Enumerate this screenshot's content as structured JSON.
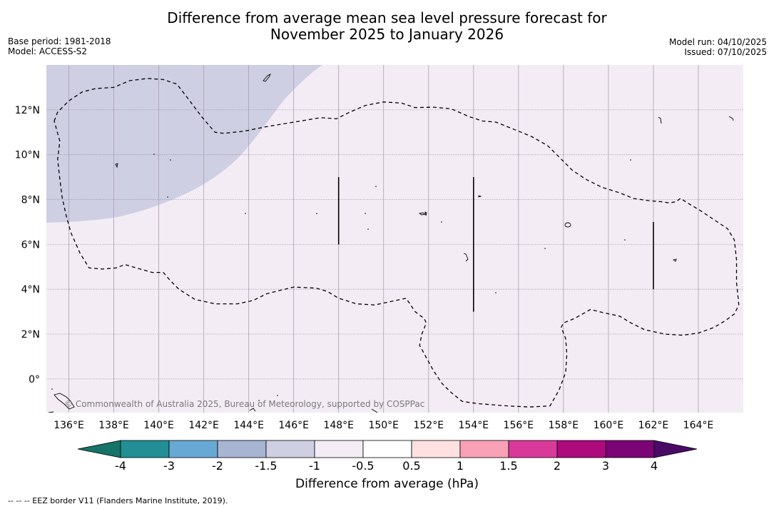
{
  "header": {
    "title_line1": "Difference from average mean sea level pressure forecast for",
    "title_line2": "November 2025 to January 2026",
    "base_period": "Base period: 1981-2018",
    "model": "Model: ACCESS-S2",
    "model_run": "Model run: 04/10/2025",
    "issued": "Issued: 07/10/2025"
  },
  "map": {
    "lon_range": [
      135,
      166
    ],
    "lat_range": [
      -1.5,
      14
    ],
    "lon_ticks": [
      136,
      138,
      140,
      142,
      144,
      146,
      148,
      150,
      152,
      154,
      156,
      158,
      160,
      162,
      164
    ],
    "lon_labels": [
      "136°E",
      "138°E",
      "140°E",
      "142°E",
      "144°E",
      "146°E",
      "148°E",
      "150°E",
      "152°E",
      "154°E",
      "156°E",
      "158°E",
      "160°E",
      "162°E",
      "164°E"
    ],
    "lat_ticks": [
      12,
      10,
      8,
      6,
      4,
      2,
      0
    ],
    "lat_labels": [
      "12°N",
      "10°N",
      "8°N",
      "6°N",
      "4°N",
      "2°N",
      "0°"
    ],
    "attribution": "© Commonwealth of Australia 2025, Bureau of Meteorology, supported by COSPPac",
    "background_color": "#f4ecf5",
    "anomaly_region_color": "#cfcfe3",
    "anomaly_region_range": "-1.5 to -1 hPa",
    "background_range": "-1 to -0.5 hPa",
    "eez_boundary": [
      [
        135.35,
        11.5
      ],
      [
        135.5,
        11.9
      ],
      [
        136,
        12.4
      ],
      [
        136.6,
        12.8
      ],
      [
        137.2,
        12.95
      ],
      [
        138,
        13
      ],
      [
        138.7,
        13.3
      ],
      [
        139.5,
        13.4
      ],
      [
        140.2,
        13.35
      ],
      [
        140.8,
        13.15
      ],
      [
        141.3,
        12.5
      ],
      [
        141.9,
        11.7
      ],
      [
        142.5,
        11
      ],
      [
        142.9,
        10.95
      ],
      [
        143.8,
        11.05
      ],
      [
        144.8,
        11.25
      ],
      [
        146,
        11.45
      ],
      [
        147.2,
        11.65
      ],
      [
        147.9,
        11.6
      ],
      [
        148.5,
        11.9
      ],
      [
        149.2,
        12.2
      ],
      [
        150,
        12.35
      ],
      [
        150.8,
        12.3
      ],
      [
        151.4,
        12.1
      ],
      [
        152.2,
        12.12
      ],
      [
        153,
        12.05
      ],
      [
        153.8,
        11.7
      ],
      [
        154.4,
        11.5
      ],
      [
        155,
        11.45
      ],
      [
        156,
        11.05
      ],
      [
        156.6,
        10.8
      ],
      [
        157.3,
        10.4
      ],
      [
        157.8,
        9.9
      ],
      [
        158.4,
        9.3
      ],
      [
        159,
        8.9
      ],
      [
        159.7,
        8.55
      ],
      [
        160.5,
        8.3
      ],
      [
        161.1,
        8.05
      ],
      [
        161.8,
        7.95
      ],
      [
        162.4,
        7.9
      ],
      [
        162.7,
        7.85
      ],
      [
        163,
        7.9
      ],
      [
        163.2,
        8.05
      ],
      [
        163.6,
        7.8
      ],
      [
        164.1,
        7.5
      ],
      [
        164.7,
        7.1
      ],
      [
        165.3,
        6.7
      ],
      [
        165.6,
        6.2
      ],
      [
        165.7,
        5.3
      ],
      [
        165.7,
        4.3
      ],
      [
        165.8,
        3.3
      ],
      [
        165.6,
        2.9
      ],
      [
        165.2,
        2.6
      ],
      [
        164.7,
        2.3
      ],
      [
        164,
        2.05
      ],
      [
        163.3,
        1.95
      ],
      [
        162.5,
        2
      ],
      [
        161.6,
        2.2
      ],
      [
        161,
        2.5
      ],
      [
        160.5,
        2.8
      ],
      [
        159.8,
        2.95
      ],
      [
        159.2,
        3.1
      ],
      [
        158.5,
        2.7
      ],
      [
        158,
        2.5
      ],
      [
        157.9,
        2.3
      ],
      [
        158.1,
        1.8
      ],
      [
        158.15,
        1.1
      ],
      [
        158.1,
        0.3
      ],
      [
        157.8,
        -0.5
      ],
      [
        157.4,
        -1.2
      ],
      [
        156.5,
        -1.25
      ],
      [
        155.5,
        -1.2
      ],
      [
        154.2,
        -1.1
      ],
      [
        153.5,
        -1
      ],
      [
        153,
        -0.6
      ],
      [
        152.6,
        -0.2
      ],
      [
        152.2,
        0.4
      ],
      [
        151.6,
        1.5
      ],
      [
        151.7,
        2
      ],
      [
        151.9,
        2.5
      ],
      [
        151.8,
        2.7
      ],
      [
        151.4,
        3
      ],
      [
        151,
        3.6
      ],
      [
        150.3,
        3.45
      ],
      [
        149.6,
        3.3
      ],
      [
        148.8,
        3.35
      ],
      [
        148,
        3.6
      ],
      [
        147.5,
        3.9
      ],
      [
        147,
        4.05
      ],
      [
        146,
        4.1
      ],
      [
        145.2,
        3.9
      ],
      [
        144.8,
        3.8
      ],
      [
        144.2,
        3.5
      ],
      [
        143.5,
        3.35
      ],
      [
        142.5,
        3.35
      ],
      [
        141.6,
        3.55
      ],
      [
        140.9,
        4
      ],
      [
        140.5,
        4.4
      ],
      [
        140.2,
        4.75
      ],
      [
        139.7,
        4.75
      ],
      [
        139,
        4.95
      ],
      [
        138.5,
        5.1
      ],
      [
        138.1,
        4.95
      ],
      [
        137.5,
        4.9
      ],
      [
        136.9,
        4.95
      ],
      [
        136.5,
        5.6
      ],
      [
        136.1,
        6.5
      ],
      [
        135.9,
        7.2
      ],
      [
        135.7,
        8.1
      ],
      [
        135.6,
        8.9
      ],
      [
        135.5,
        9.8
      ],
      [
        135.6,
        10.6
      ],
      [
        135.35,
        11.5
      ]
    ],
    "eez_segments": [
      [
        [
          148,
          9
        ],
        [
          148,
          6
        ]
      ],
      [
        [
          154,
          9
        ],
        [
          154,
          3
        ]
      ],
      [
        [
          162,
          7
        ],
        [
          162,
          4
        ]
      ]
    ]
  },
  "colorbar": {
    "tick_labels": [
      "-4",
      "-3",
      "-2",
      "-1.5",
      "-1",
      "-0.5",
      "0.5",
      "1",
      "1.5",
      "2",
      "3",
      "4"
    ],
    "low_extend_color": "#137467",
    "high_extend_color": "#4a0a66",
    "bin_colors": [
      "#218f94",
      "#68a8d4",
      "#a7b4d2",
      "#cfcfe3",
      "#f4ecf5",
      "#ffffff",
      "#fde0df",
      "#f9a1b6",
      "#d93a9a",
      "#ae0a7e",
      "#7b0476"
    ],
    "label": "Difference from average (hPa)"
  },
  "footnote": "--  --  -- EEZ border V11 (Flanders Marine Institute, 2019)."
}
